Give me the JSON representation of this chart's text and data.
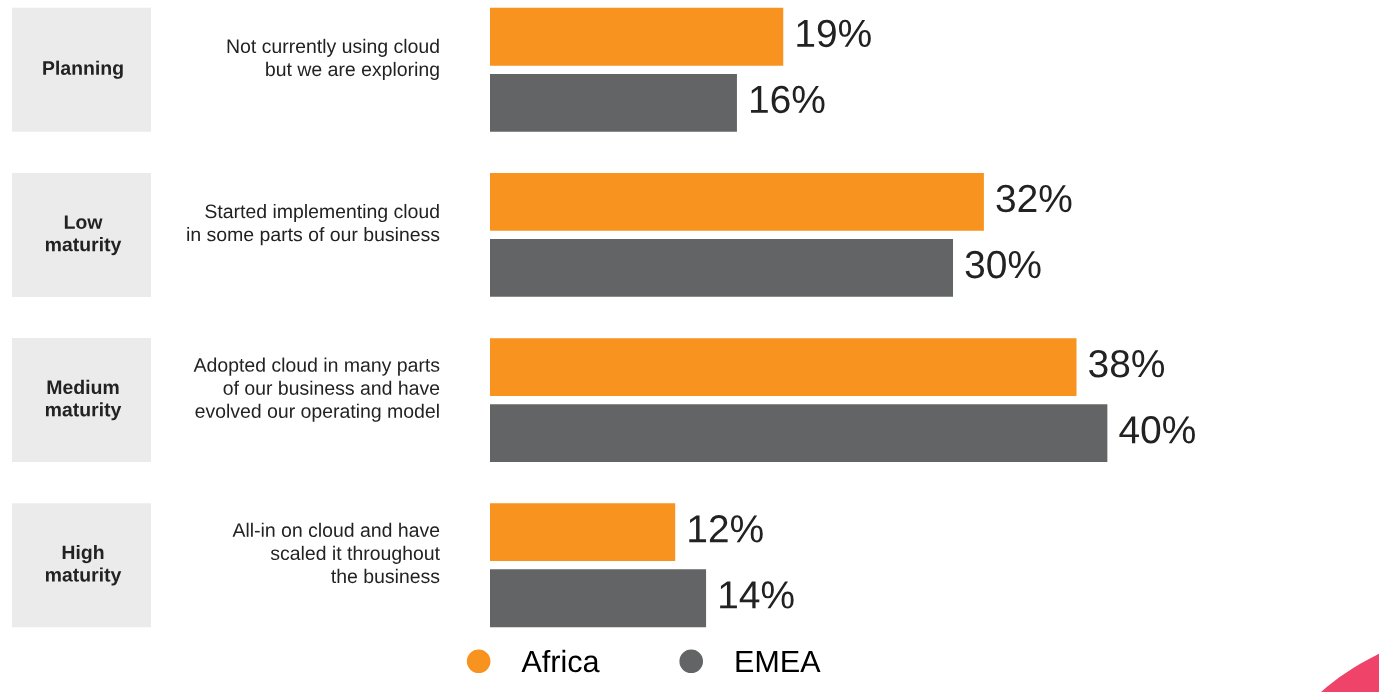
{
  "chart_data": {
    "type": "bar",
    "orientation": "horizontal",
    "categories": [
      "Planning",
      "Low\nmaturity",
      "Medium\nmaturity",
      "High\nmaturity"
    ],
    "annotations": [
      "Not currently using cloud\nbut we are exploring",
      "Started implementing cloud\nin some parts of our business",
      "Adopted cloud in many parts\nof our business and have\nevolved our operating model",
      "All-in on cloud and have\nscaled it throughout\nthe business"
    ],
    "series": [
      {
        "name": "Africa",
        "color": "#f7931e",
        "values": [
          19,
          32,
          38,
          12
        ],
        "value_labels": [
          "19%",
          "32%",
          "38%",
          "12%"
        ]
      },
      {
        "name": "EMEA",
        "color": "#636466",
        "values": [
          16,
          30,
          40,
          14
        ],
        "value_labels": [
          "16%",
          "30%",
          "40%",
          "14%"
        ]
      }
    ],
    "legend": "bottom"
  }
}
